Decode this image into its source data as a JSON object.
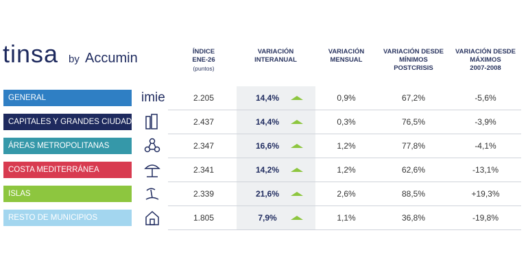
{
  "brand": {
    "name": "tinsa",
    "by": "by",
    "partner": "Accumin"
  },
  "logo_label": "imie",
  "table": {
    "columns": [
      [
        "ÍNDICE",
        "ENE-26",
        "(puntos)"
      ],
      [
        "VARIACIÓN",
        "INTERANUAL"
      ],
      [
        "VARIACIÓN",
        "MENSUAL"
      ],
      [
        "VARIACIÓN DESDE",
        "MÍNIMOS",
        "POSTCRISIS"
      ],
      [
        "VARIACIÓN DESDE",
        "MÁXIMOS",
        "2007-2008"
      ]
    ],
    "rows": [
      {
        "label": "GENERAL",
        "color": "#2f7fc4",
        "cells": [
          "2.205",
          "14,4%",
          "0,9%",
          "67,2%",
          "-5,6%"
        ]
      },
      {
        "label": "CAPITALES Y GRANDES CIUDADES",
        "color": "#1e2a5e",
        "cells": [
          "2.437",
          "14,4%",
          "0,3%",
          "76,5%",
          "-3,9%"
        ]
      },
      {
        "label": "ÁREAS METROPOLITANAS",
        "color": "#3598a9",
        "cells": [
          "2.347",
          "16,6%",
          "1,2%",
          "77,8%",
          "-4,1%"
        ]
      },
      {
        "label": "COSTA MEDITERRÁNEA",
        "color": "#d83b50",
        "cells": [
          "2.341",
          "14,2%",
          "1,2%",
          "62,6%",
          "-13,1%"
        ]
      },
      {
        "label": "ISLAS",
        "color": "#8dc63f",
        "cells": [
          "2.339",
          "21,6%",
          "2,6%",
          "88,5%",
          "+19,3%"
        ]
      },
      {
        "label": "RESTO DE MUNICIPIOS",
        "color": "#a3d6ef",
        "cells": [
          "1.805",
          "7,9%",
          "1,1%",
          "36,8%",
          "-19,8%"
        ]
      }
    ]
  }
}
